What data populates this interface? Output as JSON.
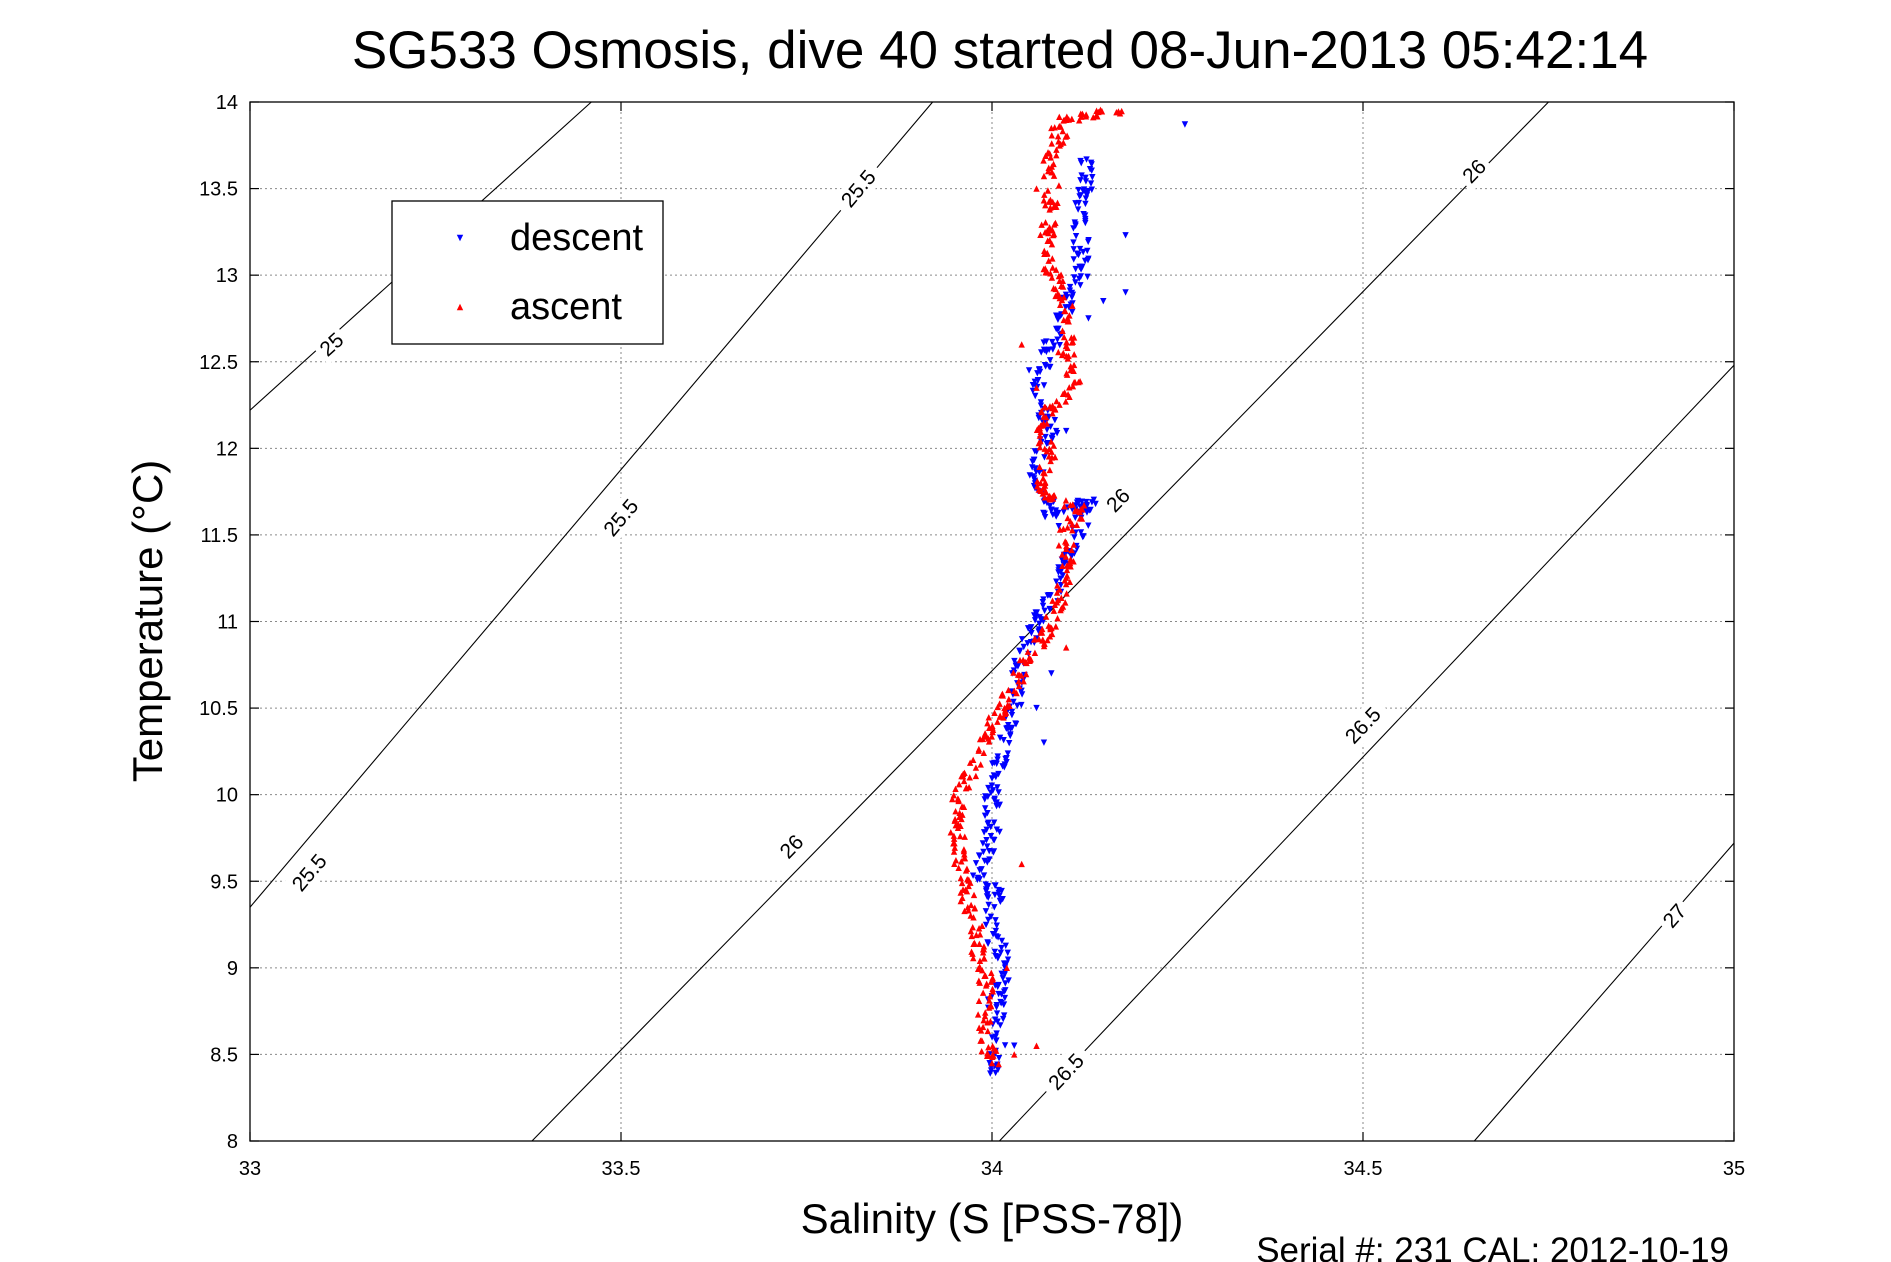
{
  "chart_data": {
    "type": "scatter",
    "title": "SG533 Osmosis, dive 40 started 08-Jun-2013 05:42:14",
    "xlabel": "Salinity (S [PSS-78])",
    "ylabel": "Temperature (°C)",
    "xlim": [
      33,
      35
    ],
    "ylim": [
      8,
      14
    ],
    "x_ticks": [
      "33",
      "33.5",
      "34",
      "34.5",
      "35"
    ],
    "y_ticks": [
      "8",
      "8.5",
      "9",
      "9.5",
      "10",
      "10.5",
      "11",
      "11.5",
      "12",
      "12.5",
      "13",
      "13.5",
      "14"
    ],
    "grid": true,
    "legend_position": "top-left",
    "footer": "Serial #: 231  CAL: 2012-10-19",
    "density_contours": [
      {
        "line": [
          [
            33.0,
            12.22
          ],
          [
            33.46,
            14.0
          ]
        ],
        "labels": [
          {
            "text": "25",
            "x": 33.11,
            "y": 12.6
          }
        ]
      },
      {
        "line": [
          [
            33.0,
            9.35
          ],
          [
            33.92,
            14.0
          ]
        ],
        "labels": [
          {
            "text": "25.5",
            "x": 33.08,
            "y": 9.55
          },
          {
            "text": "25.5",
            "x": 33.5,
            "y": 11.6
          },
          {
            "text": "25.5",
            "x": 33.82,
            "y": 13.5
          }
        ]
      },
      {
        "line": [
          [
            33.38,
            8.0
          ],
          [
            34.75,
            14.0
          ]
        ],
        "labels": [
          {
            "text": "26",
            "x": 33.73,
            "y": 9.7
          },
          {
            "text": "26",
            "x": 34.17,
            "y": 11.7
          },
          {
            "text": "26",
            "x": 34.65,
            "y": 13.6
          }
        ]
      },
      {
        "line": [
          [
            34.01,
            8.0
          ],
          [
            35.0,
            12.48
          ]
        ],
        "labels": [
          {
            "text": "26.5",
            "x": 34.1,
            "y": 8.4
          },
          {
            "text": "26.5",
            "x": 34.5,
            "y": 10.4
          }
        ]
      },
      {
        "line": [
          [
            34.65,
            8.0
          ],
          [
            35.0,
            9.72
          ]
        ],
        "labels": [
          {
            "text": "27",
            "x": 34.92,
            "y": 9.3
          }
        ]
      }
    ],
    "series": [
      {
        "name": "descent",
        "color": "#0000ff",
        "marker": "triangle-down",
        "path": [
          [
            34.0,
            8.4
          ],
          [
            34.01,
            8.6
          ],
          [
            34.005,
            8.8
          ],
          [
            34.02,
            9.0
          ],
          [
            34.0,
            9.2
          ],
          [
            34.005,
            9.45
          ],
          [
            33.98,
            9.5
          ],
          [
            34.0,
            9.75
          ],
          [
            34.0,
            10.0
          ],
          [
            34.015,
            10.3
          ],
          [
            34.03,
            10.5
          ],
          [
            34.04,
            10.8
          ],
          [
            34.06,
            11.0
          ],
          [
            34.09,
            11.2
          ],
          [
            34.11,
            11.45
          ],
          [
            34.13,
            11.7
          ],
          [
            34.08,
            11.6
          ],
          [
            34.06,
            11.85
          ],
          [
            34.065,
            12.0
          ],
          [
            34.08,
            12.1
          ],
          [
            34.06,
            12.3
          ],
          [
            34.07,
            12.5
          ],
          [
            34.1,
            12.8
          ],
          [
            34.12,
            13.0
          ],
          [
            34.12,
            13.3
          ],
          [
            34.13,
            13.7
          ]
        ],
        "extra": [
          [
            34.26,
            13.87
          ],
          [
            34.18,
            13.23
          ],
          [
            34.18,
            12.9
          ],
          [
            34.15,
            12.85
          ],
          [
            34.13,
            12.75
          ],
          [
            34.1,
            12.1
          ],
          [
            34.08,
            10.7
          ],
          [
            34.07,
            10.3
          ],
          [
            34.03,
            8.55
          ],
          [
            34.06,
            10.5
          ],
          [
            34.05,
            12.45
          ],
          [
            34.09,
            11.55
          ]
        ]
      },
      {
        "name": "ascent",
        "color": "#ff0000",
        "marker": "triangle-up",
        "path": [
          [
            34.0,
            8.45
          ],
          [
            33.99,
            8.7
          ],
          [
            33.995,
            8.9
          ],
          [
            33.98,
            9.1
          ],
          [
            33.975,
            9.3
          ],
          [
            33.96,
            9.5
          ],
          [
            33.955,
            9.7
          ],
          [
            33.955,
            10.0
          ],
          [
            34.05,
            10.8
          ],
          [
            34.07,
            10.9
          ],
          [
            34.09,
            11.1
          ],
          [
            34.1,
            11.3
          ],
          [
            34.1,
            11.5
          ],
          [
            34.12,
            11.65
          ],
          [
            34.06,
            11.75
          ],
          [
            34.08,
            11.95
          ],
          [
            34.07,
            12.05
          ],
          [
            34.07,
            12.2
          ],
          [
            34.1,
            12.3
          ],
          [
            34.11,
            12.4
          ],
          [
            34.1,
            12.55
          ],
          [
            34.1,
            12.8
          ],
          [
            34.09,
            12.95
          ],
          [
            34.07,
            13.1
          ],
          [
            34.08,
            13.4
          ],
          [
            34.08,
            13.7
          ],
          [
            34.1,
            13.9
          ],
          [
            34.17,
            13.95
          ]
        ],
        "extra": [
          [
            34.08,
            13.85
          ],
          [
            34.06,
            13.5
          ],
          [
            34.04,
            12.6
          ],
          [
            34.06,
            12.35
          ],
          [
            33.97,
            10.1
          ],
          [
            34.06,
            8.55
          ],
          [
            34.03,
            8.5
          ],
          [
            34.0,
            8.45
          ],
          [
            34.04,
            9.6
          ],
          [
            34.02,
            9.0
          ],
          [
            34.03,
            10.6
          ],
          [
            34.1,
            10.85
          ]
        ]
      }
    ]
  }
}
